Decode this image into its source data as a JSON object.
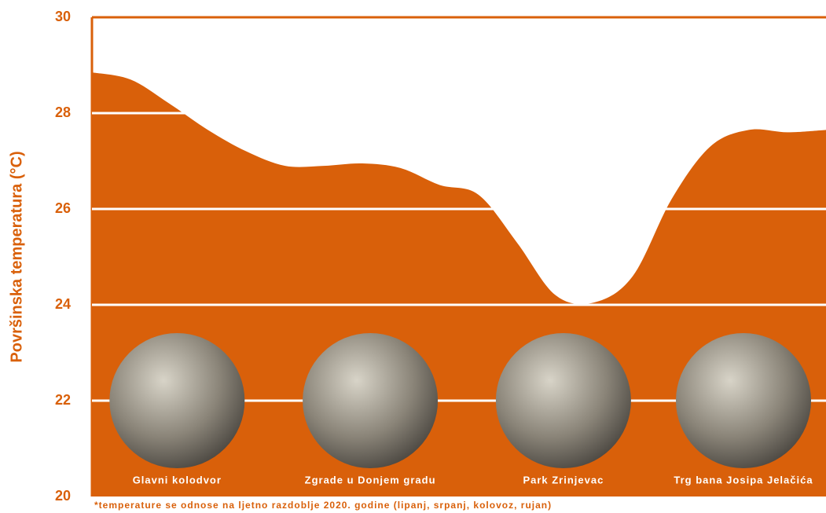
{
  "chart_data": {
    "type": "area",
    "y_label": "Površinska temperatura (°C)",
    "footnote": "*temperature se odnose na ljetno razdoblje 2020. godine (lipanj, srpanj, kolovoz, rujan)",
    "categories": [
      null,
      null,
      "Glavni kolodvor",
      null,
      null,
      null,
      null,
      "Zgrade u Donjem gradu",
      null,
      null,
      null,
      null,
      "Park Zrinjevac",
      null,
      null,
      null,
      null,
      "Trg bana Josipa Jelačića",
      null,
      null
    ],
    "values": [
      28.85,
      28.7,
      28.2,
      27.65,
      27.2,
      26.9,
      26.9,
      26.95,
      26.85,
      26.5,
      26.3,
      25.3,
      24.2,
      24.05,
      24.6,
      26.2,
      27.3,
      27.65,
      27.6,
      27.65
    ],
    "color": "#d9600a",
    "ylim": [
      20,
      30
    ],
    "yticks": [
      20,
      22,
      24,
      26,
      28,
      30
    ],
    "grid": true
  }
}
